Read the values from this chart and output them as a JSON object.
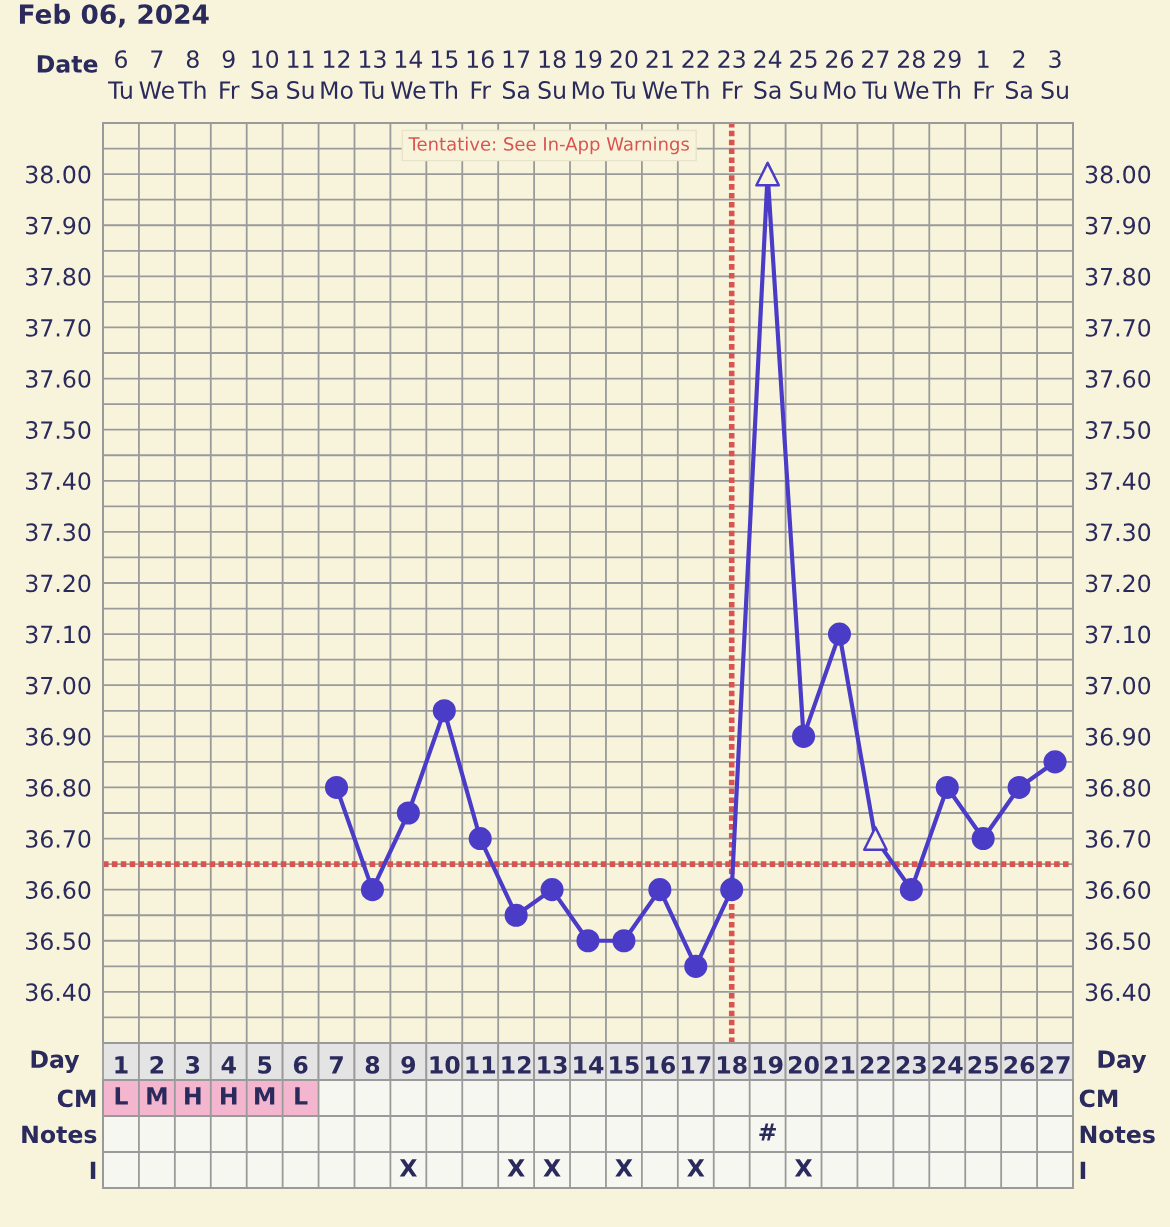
{
  "chart_data": [
    {
      "type": "line",
      "title": "Feb 06, 2024",
      "xlabel": "Day",
      "x2label": "Date",
      "categories": [
        "1",
        "2",
        "3",
        "4",
        "5",
        "6",
        "7",
        "8",
        "9",
        "10",
        "11",
        "12",
        "13",
        "14",
        "15",
        "16",
        "17",
        "18",
        "19",
        "20",
        "21",
        "22",
        "23",
        "24",
        "25",
        "26",
        "27"
      ],
      "series": [
        {
          "type": "line",
          "color": "#4b3cc8",
          "marker": "none",
          "line_style": "solid",
          "values": [
            null,
            null,
            null,
            null,
            null,
            null,
            36.8,
            36.6,
            36.75,
            36.95,
            36.7,
            36.55,
            36.6,
            36.5,
            36.5,
            36.6,
            36.45,
            36.6,
            38.0,
            36.9,
            37.1,
            36.7,
            36.6,
            36.8,
            36.7,
            36.8,
            36.85
          ]
        },
        {
          "type": "scatter",
          "color": "#4b3cc8",
          "marker": "circle",
          "values": [
            null,
            null,
            null,
            null,
            null,
            null,
            36.8,
            36.6,
            36.75,
            36.95,
            36.7,
            36.55,
            36.6,
            36.5,
            36.5,
            36.6,
            36.45,
            36.6,
            null,
            36.9,
            37.1,
            null,
            36.6,
            36.8,
            36.7,
            36.8,
            36.85
          ]
        },
        {
          "type": "scatter",
          "color": "#4b3cc8",
          "marker": "triangle",
          "values": [
            null,
            null,
            null,
            null,
            null,
            null,
            null,
            null,
            null,
            null,
            null,
            null,
            null,
            null,
            null,
            null,
            null,
            null,
            38.0,
            null,
            null,
            36.7,
            null,
            null,
            null,
            null,
            null
          ]
        }
      ],
      "ylim": [
        36.3,
        38.1
      ],
      "yticks": [
        {
          "value": 36.4,
          "label": "36.40"
        },
        {
          "value": 36.5,
          "label": "36.50"
        },
        {
          "value": 36.6,
          "label": "36.60"
        },
        {
          "value": 36.7,
          "label": "36.70"
        },
        {
          "value": 36.8,
          "label": "36.80"
        },
        {
          "value": 36.9,
          "label": "36.90"
        },
        {
          "value": 37.0,
          "label": "37.00"
        },
        {
          "value": 37.1,
          "label": "37.10"
        },
        {
          "value": 37.2,
          "label": "37.20"
        },
        {
          "value": 37.3,
          "label": "37.30"
        },
        {
          "value": 37.4,
          "label": "37.40"
        },
        {
          "value": 37.5,
          "label": "37.50"
        },
        {
          "value": 37.6,
          "label": "37.60"
        },
        {
          "value": 37.7,
          "label": "37.70"
        },
        {
          "value": 37.8,
          "label": "37.80"
        },
        {
          "value": 37.9,
          "label": "37.90"
        },
        {
          "value": 38.0,
          "label": "38.00"
        }
      ],
      "y2lim": [
        36.3,
        38.1
      ],
      "y2ticks": [
        {
          "value": 36.4,
          "label": "36.40"
        },
        {
          "value": 36.5,
          "label": "36.50"
        },
        {
          "value": 36.6,
          "label": "36.60"
        },
        {
          "value": 36.7,
          "label": "36.70"
        },
        {
          "value": 36.8,
          "label": "36.80"
        },
        {
          "value": 36.9,
          "label": "36.90"
        },
        {
          "value": 37.0,
          "label": "37.00"
        },
        {
          "value": 37.1,
          "label": "37.10"
        },
        {
          "value": 37.2,
          "label": "37.20"
        },
        {
          "value": 37.3,
          "label": "37.30"
        },
        {
          "value": 37.4,
          "label": "37.40"
        },
        {
          "value": 37.5,
          "label": "37.50"
        },
        {
          "value": 37.6,
          "label": "37.60"
        },
        {
          "value": 37.7,
          "label": "37.70"
        },
        {
          "value": 37.8,
          "label": "37.80"
        },
        {
          "value": 37.9,
          "label": "37.90"
        },
        {
          "value": 38.0,
          "label": "38.00"
        }
      ],
      "x2lim": [
        "2024-02-05T12:00",
        "2024-03-03T12:00"
      ],
      "x2ticks": [
        {
          "value": "2024-02-06",
          "label": "6\nTu"
        },
        {
          "value": "2024-02-07",
          "label": "7\nWe"
        },
        {
          "value": "2024-02-08",
          "label": "8\nTh"
        },
        {
          "value": "2024-02-09",
          "label": "9\nFr"
        },
        {
          "value": "2024-02-10",
          "label": "10\nSa"
        },
        {
          "value": "2024-02-11",
          "label": "11\nSu"
        },
        {
          "value": "2024-02-12",
          "label": "12\nMo"
        },
        {
          "value": "2024-02-13",
          "label": "13\nTu"
        },
        {
          "value": "2024-02-14",
          "label": "14\nWe"
        },
        {
          "value": "2024-02-15",
          "label": "15\nTh"
        },
        {
          "value": "2024-02-16",
          "label": "16\nFr"
        },
        {
          "value": "2024-02-17",
          "label": "17\nSa"
        },
        {
          "value": "2024-02-18",
          "label": "18\nSu"
        },
        {
          "value": "2024-02-19",
          "label": "19\nMo"
        },
        {
          "value": "2024-02-20",
          "label": "20\nTu"
        },
        {
          "value": "2024-02-21",
          "label": "21\nWe"
        },
        {
          "value": "2024-02-22",
          "label": "22\nTh"
        },
        {
          "value": "2024-02-23",
          "label": "23\nFr"
        },
        {
          "value": "2024-02-24",
          "label": "24\nSa"
        },
        {
          "value": "2024-02-25",
          "label": "25\nSu"
        },
        {
          "value": "2024-02-26",
          "label": "26\nMo"
        },
        {
          "value": "2024-02-27",
          "label": "27\nTu"
        },
        {
          "value": "2024-02-28",
          "label": "28\nWe"
        },
        {
          "value": "2024-02-29",
          "label": "29\nTh"
        },
        {
          "value": "2024-03-01",
          "label": "1\nFr"
        },
        {
          "value": "2024-03-02",
          "label": "2\nSa"
        },
        {
          "value": "2024-03-03",
          "label": "3\nSu"
        }
      ],
      "grid": true,
      "ref_lines": [
        {
          "axis": "y",
          "value": 36.65,
          "color": "#d9534f",
          "line_style": "dotted"
        },
        {
          "axis": "x",
          "value": "18",
          "color": "#d9534f",
          "line_style": "dotted"
        }
      ],
      "annotations": [
        "Tentative: See In-App Warnings"
      ]
    },
    {
      "type": "heatmap",
      "color": "#f4b6cf",
      "tick_labels": "y",
      "categories": [
        "1",
        "2",
        "3",
        "4",
        "5",
        "6",
        "7",
        "8",
        "9",
        "10",
        "11",
        "12",
        "13",
        "14",
        "15",
        "16",
        "17",
        "18",
        "19",
        "20",
        "21",
        "22",
        "23",
        "24",
        "25",
        "26",
        "27"
      ],
      "y_categories": [
        "CM",
        "Notes",
        "I"
      ],
      "y2_categories": [
        "CM",
        "Notes",
        "I"
      ],
      "cells": [
        [
          null,
          null,
          null,
          null,
          null,
          null,
          null,
          null,
          null,
          null,
          null,
          null,
          null,
          null,
          null,
          null,
          null,
          null,
          null,
          null,
          null,
          null,
          null,
          null,
          null,
          null,
          null
        ],
        [
          null,
          null,
          null,
          null,
          null,
          null,
          null,
          null,
          null,
          null,
          null,
          null,
          null,
          null,
          null,
          null,
          null,
          null,
          null,
          null,
          null,
          null,
          null,
          null,
          null,
          null,
          null
        ],
        [
          null,
          null,
          null,
          null,
          null,
          null,
          null,
          null,
          null,
          null,
          null,
          null,
          null,
          null,
          null,
          null,
          null,
          null,
          null,
          null,
          null,
          null,
          null,
          null,
          null,
          null,
          null
        ]
      ],
      "cell_labels": [
        [
          "L",
          "M",
          "H",
          "H",
          "M",
          "L",
          null,
          null,
          null,
          null,
          null,
          null,
          null,
          null,
          null,
          null,
          null,
          null,
          null,
          null,
          null,
          null,
          null,
          null,
          null,
          null,
          null
        ],
        [
          null,
          null,
          null,
          null,
          null,
          null,
          null,
          null,
          null,
          null,
          null,
          null,
          null,
          null,
          null,
          null,
          null,
          null,
          "#",
          null,
          null,
          null,
          null,
          null,
          null,
          null,
          null
        ],
        [
          null,
          null,
          null,
          null,
          null,
          null,
          null,
          null,
          "X",
          null,
          null,
          "X",
          "X",
          null,
          "X",
          null,
          "X",
          null,
          null,
          "X",
          null,
          null,
          null,
          null,
          null,
          null,
          null
        ]
      ]
    }
  ]
}
